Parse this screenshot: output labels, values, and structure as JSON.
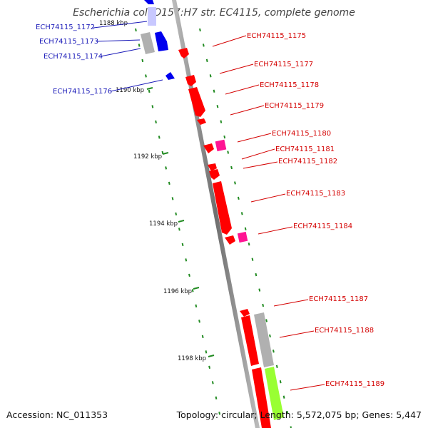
{
  "title": "Escherichia coli O157:H7 str. EC4115, complete genome",
  "footer": {
    "accession": "Accession: NC_011353",
    "summary": "Topology: circular; Length: 5,572,075 bp; Genes: 5,447"
  },
  "scale_labels": [
    "1188 kbp",
    "1190 kbp",
    "1192 kbp",
    "1194 kbp",
    "1196 kbp",
    "1198 kbp"
  ],
  "genes_right": [
    "ECH74115_1175",
    "ECH74115_1177",
    "ECH74115_1178",
    "ECH74115_1179",
    "ECH74115_1180",
    "ECH74115_1181",
    "ECH74115_1182",
    "ECH74115_1183",
    "ECH74115_1184",
    "ECH74115_1187",
    "ECH74115_1188",
    "ECH74115_1189"
  ],
  "genes_left": [
    "ECH74115_1172",
    "ECH74115_1173",
    "ECH74115_1174",
    "ECH74115_1176"
  ],
  "colors": {
    "forward": "#ff0000",
    "reverse": "#0000ee",
    "rna": "#ff1493",
    "other": "#b0b0b0",
    "pseudo": "#99ff33",
    "backbone": "#808080",
    "tick": "#228b22",
    "label_right": "#d40000",
    "label_left": "#1a1ab8"
  }
}
